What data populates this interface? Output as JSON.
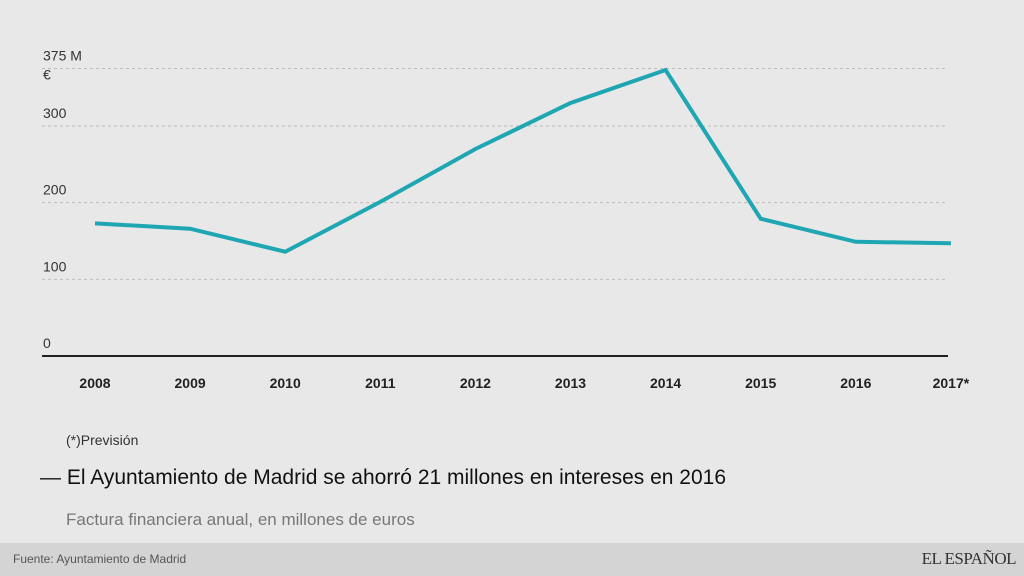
{
  "chart_data": {
    "type": "line",
    "title": "El Ayuntamiento de Madrid se ahorró 21 millones en intereses en 2016",
    "subtitle": "Factura financiera anual, en millones de euros",
    "categories": [
      "2008",
      "2009",
      "2010",
      "2011",
      "2012",
      "2013",
      "2014",
      "2015",
      "2016",
      "2017*"
    ],
    "series": [
      {
        "name": "Factura financiera",
        "values": [
          173,
          166,
          136,
          201,
          270,
          330,
          373,
          179,
          149,
          147
        ],
        "color": "#1fa6b3"
      }
    ],
    "yticks": [
      {
        "value": 0,
        "label": "0"
      },
      {
        "value": 100,
        "label": "100"
      },
      {
        "value": 200,
        "label": "200"
      },
      {
        "value": 300,
        "label": "300"
      },
      {
        "value": 375,
        "label": "375 M"
      }
    ],
    "yunit": "€",
    "ylim": [
      0,
      375
    ],
    "grid": true,
    "xlabel": "",
    "ylabel": ""
  },
  "note": "(*)Previsión",
  "title_prefix": "—",
  "footer": {
    "source": "Fuente: Ayuntamiento de Madrid",
    "logo": "EL ESPAÑOL"
  }
}
